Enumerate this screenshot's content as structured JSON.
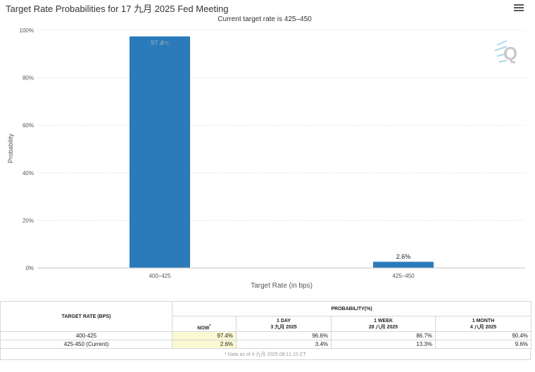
{
  "header": {
    "title": "Target Rate Probabilities for 17 九月 2025 Fed Meeting",
    "menu_icon": "hamburger-menu-icon"
  },
  "chart_data": {
    "type": "bar",
    "subtitle": "Current target rate is 425–450",
    "categories": [
      "400–425",
      "425–450"
    ],
    "values": [
      97.4,
      2.6
    ],
    "data_labels": [
      "97.4%",
      "2.6%"
    ],
    "xlabel": "Target Rate (in bps)",
    "ylabel": "Probability",
    "ylim": [
      0,
      100
    ],
    "yticks": [
      0,
      20,
      40,
      60,
      80,
      100
    ],
    "ytick_labels": [
      "0%",
      "20%",
      "40%",
      "60%",
      "80%",
      "100%"
    ],
    "grid": true,
    "bar_color": "#2b7bba",
    "watermark": "Q"
  },
  "table": {
    "col_header": "TARGET RATE (BPS)",
    "prob_header": "PROBABILITY(%)",
    "periods": [
      {
        "label": "NOW",
        "sup": "*",
        "date": ""
      },
      {
        "label": "1 DAY",
        "date": "3 九月 2025"
      },
      {
        "label": "1 WEEK",
        "date": "28 八月 2025"
      },
      {
        "label": "1 MONTH",
        "date": "4 八月 2025"
      }
    ],
    "rows": [
      {
        "rate": "400-425",
        "values": [
          "97.4%",
          "96.6%",
          "86.7%",
          "90.4%"
        ]
      },
      {
        "rate": "425-450 (Current)",
        "values": [
          "2.6%",
          "3.4%",
          "13.3%",
          "9.6%"
        ]
      }
    ],
    "footnote": "* Data as of 4 九月 2025 08:11:10 CT"
  }
}
